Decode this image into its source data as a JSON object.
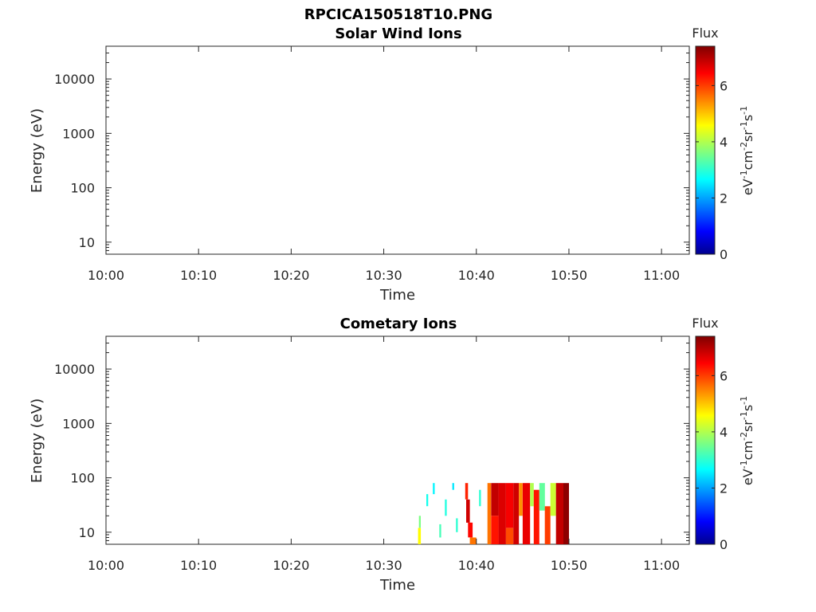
{
  "figure_title": "RPCICA150518T10.PNG",
  "panels": {
    "top": {
      "title": "Solar Wind Ions",
      "xlabel": "Time",
      "ylabel": "Energy (eV)",
      "colorbar": {
        "label": "Flux",
        "unit_base": [
          "eV",
          "cm",
          "sr",
          "s"
        ],
        "unit_exp": [
          "-1",
          "-2",
          "-1",
          "-1"
        ]
      }
    },
    "bottom": {
      "title": "Cometary Ions",
      "xlabel": "Time",
      "ylabel": "Energy (eV)",
      "colorbar": {
        "label": "Flux",
        "unit_base": [
          "eV",
          "cm",
          "sr",
          "s"
        ],
        "unit_exp": [
          "-1",
          "-2",
          "-1",
          "-1"
        ]
      }
    }
  },
  "chart_data": [
    {
      "type": "heatmap",
      "title": "Solar Wind Ions",
      "xlabel": "Time",
      "ylabel": "Energy (eV)",
      "x_ticks": [
        "10:00",
        "10:10",
        "10:20",
        "10:30",
        "10:40",
        "10:50",
        "11:00"
      ],
      "xlim_minutes": [
        0,
        63
      ],
      "y_scale": "log",
      "y_ticks": [
        10,
        100,
        1000,
        10000
      ],
      "y_tick_labels": [
        "10",
        "100",
        "1000",
        "10000"
      ],
      "ylim": [
        6,
        40000
      ],
      "colorbar": {
        "label": "Flux",
        "range": [
          0,
          7.4
        ],
        "ticks": [
          0,
          2,
          4,
          6
        ],
        "colormap": "jet"
      },
      "cells": []
    },
    {
      "type": "heatmap",
      "title": "Cometary Ions",
      "xlabel": "Time",
      "ylabel": "Energy (eV)",
      "x_ticks": [
        "10:00",
        "10:10",
        "10:20",
        "10:30",
        "10:40",
        "10:50",
        "11:00"
      ],
      "xlim_minutes": [
        0,
        63
      ],
      "y_scale": "log",
      "y_ticks": [
        10,
        100,
        1000,
        10000
      ],
      "y_tick_labels": [
        "10",
        "100",
        "1000",
        "10000"
      ],
      "ylim": [
        6,
        40000
      ],
      "colorbar": {
        "label": "Flux",
        "range": [
          0,
          7.4
        ],
        "ticks": [
          0,
          2,
          4,
          6
        ],
        "colormap": "jet"
      },
      "data_extent": {
        "time_start": "10:33.7",
        "time_end": "10:50",
        "energy_min_eV": 6,
        "energy_max_eV": 80
      },
      "cells": [
        {
          "t0": 33.7,
          "t1": 34.0,
          "e0": 6,
          "e1": 12,
          "v": 4.6
        },
        {
          "t0": 33.8,
          "t1": 34.0,
          "e0": 12,
          "e1": 20,
          "v": 3.6
        },
        {
          "t0": 34.6,
          "t1": 34.8,
          "e0": 30,
          "e1": 50,
          "v": 2.8
        },
        {
          "t0": 35.3,
          "t1": 35.5,
          "e0": 50,
          "e1": 80,
          "v": 2.6
        },
        {
          "t0": 36.0,
          "t1": 36.2,
          "e0": 8,
          "e1": 14,
          "v": 3.2
        },
        {
          "t0": 36.6,
          "t1": 36.8,
          "e0": 20,
          "e1": 40,
          "v": 2.9
        },
        {
          "t0": 37.4,
          "t1": 37.6,
          "e0": 60,
          "e1": 80,
          "v": 2.5
        },
        {
          "t0": 37.8,
          "t1": 38.0,
          "e0": 10,
          "e1": 18,
          "v": 3.0
        },
        {
          "t0": 38.8,
          "t1": 39.1,
          "e0": 40,
          "e1": 80,
          "v": 6.2
        },
        {
          "t0": 38.9,
          "t1": 39.3,
          "e0": 15,
          "e1": 40,
          "v": 6.8
        },
        {
          "t0": 39.1,
          "t1": 39.6,
          "e0": 8,
          "e1": 15,
          "v": 6.4
        },
        {
          "t0": 39.3,
          "t1": 40.0,
          "e0": 6,
          "e1": 8,
          "v": 5.6
        },
        {
          "t0": 40.3,
          "t1": 40.5,
          "e0": 30,
          "e1": 60,
          "v": 3.0
        },
        {
          "t0": 41.2,
          "t1": 41.6,
          "e0": 6,
          "e1": 80,
          "v": 5.6
        },
        {
          "t0": 41.6,
          "t1": 42.4,
          "e0": 20,
          "e1": 80,
          "v": 6.9
        },
        {
          "t0": 41.6,
          "t1": 42.4,
          "e0": 6,
          "e1": 20,
          "v": 6.3
        },
        {
          "t0": 42.4,
          "t1": 43.2,
          "e0": 6,
          "e1": 80,
          "v": 6.7
        },
        {
          "t0": 43.2,
          "t1": 44.0,
          "e0": 12,
          "e1": 80,
          "v": 6.5
        },
        {
          "t0": 43.2,
          "t1": 44.0,
          "e0": 6,
          "e1": 12,
          "v": 5.9
        },
        {
          "t0": 44.0,
          "t1": 44.6,
          "e0": 6,
          "e1": 80,
          "v": 6.8
        },
        {
          "t0": 44.6,
          "t1": 45.0,
          "e0": 20,
          "e1": 80,
          "v": 5.4
        },
        {
          "t0": 45.0,
          "t1": 45.8,
          "e0": 6,
          "e1": 80,
          "v": 6.6
        },
        {
          "t0": 45.8,
          "t1": 46.2,
          "e0": 30,
          "e1": 80,
          "v": 4.0
        },
        {
          "t0": 46.2,
          "t1": 46.8,
          "e0": 6,
          "e1": 60,
          "v": 6.3
        },
        {
          "t0": 46.8,
          "t1": 47.4,
          "e0": 25,
          "e1": 80,
          "v": 3.4
        },
        {
          "t0": 47.4,
          "t1": 48.0,
          "e0": 6,
          "e1": 30,
          "v": 6.0
        },
        {
          "t0": 48.0,
          "t1": 48.6,
          "e0": 20,
          "e1": 80,
          "v": 4.2
        },
        {
          "t0": 48.6,
          "t1": 49.4,
          "e0": 6,
          "e1": 80,
          "v": 6.9
        },
        {
          "t0": 49.4,
          "t1": 50.0,
          "e0": 6,
          "e1": 80,
          "v": 7.3
        }
      ]
    }
  ]
}
